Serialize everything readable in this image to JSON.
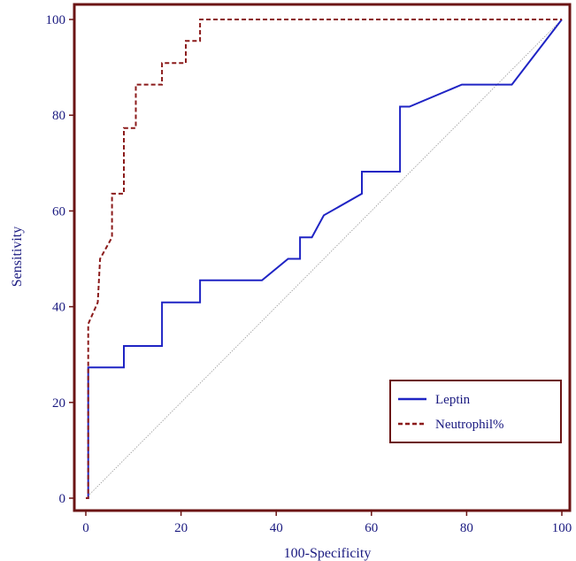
{
  "chart_data": {
    "type": "line",
    "title": "",
    "xlabel": "100-Specificity",
    "ylabel": "Sensitivity",
    "xlim": [
      0,
      100
    ],
    "ylim": [
      0,
      100
    ],
    "x_ticks": [
      "0",
      "20",
      "40",
      "60",
      "80",
      "100"
    ],
    "y_ticks": [
      "0",
      "20",
      "40",
      "60",
      "80",
      "100"
    ],
    "grid": false,
    "legend_position": "bottom-right",
    "colors": {
      "frame": "#6b1414",
      "leptin": "#1f24c4",
      "neutrophil": "#8b1a1a",
      "diagonal": "#999999",
      "text": "#1a1a80"
    },
    "series": [
      {
        "name": "Leptin",
        "style": "solid",
        "points": [
          [
            0,
            0
          ],
          [
            0.5,
            0
          ],
          [
            0.5,
            27.3
          ],
          [
            8,
            27.3
          ],
          [
            8,
            31.8
          ],
          [
            16,
            31.8
          ],
          [
            16,
            40.9
          ],
          [
            24,
            40.9
          ],
          [
            24,
            45.5
          ],
          [
            37,
            45.5
          ],
          [
            42.5,
            50
          ],
          [
            45,
            50
          ],
          [
            45,
            54.5
          ],
          [
            47.5,
            54.5
          ],
          [
            50,
            59.1
          ],
          [
            58,
            63.6
          ],
          [
            58,
            68.2
          ],
          [
            66,
            68.2
          ],
          [
            66,
            81.8
          ],
          [
            68,
            81.8
          ],
          [
            79,
            86.4
          ],
          [
            89.5,
            86.4
          ],
          [
            100,
            100
          ]
        ]
      },
      {
        "name": "Neutrophil%",
        "style": "dashed",
        "points": [
          [
            0,
            0
          ],
          [
            0.5,
            0
          ],
          [
            0.5,
            36.4
          ],
          [
            2.5,
            40.9
          ],
          [
            3,
            50
          ],
          [
            5.5,
            54.5
          ],
          [
            5.5,
            63.6
          ],
          [
            8,
            63.6
          ],
          [
            8,
            77.3
          ],
          [
            10.5,
            77.3
          ],
          [
            10.5,
            86.4
          ],
          [
            16,
            86.4
          ],
          [
            16,
            90.9
          ],
          [
            21,
            90.9
          ],
          [
            21,
            95.5
          ],
          [
            24,
            95.5
          ],
          [
            24,
            100
          ],
          [
            100,
            100
          ]
        ]
      },
      {
        "name": "",
        "style": "dotted",
        "points": [
          [
            0,
            0
          ],
          [
            100,
            100
          ]
        ]
      }
    ]
  }
}
